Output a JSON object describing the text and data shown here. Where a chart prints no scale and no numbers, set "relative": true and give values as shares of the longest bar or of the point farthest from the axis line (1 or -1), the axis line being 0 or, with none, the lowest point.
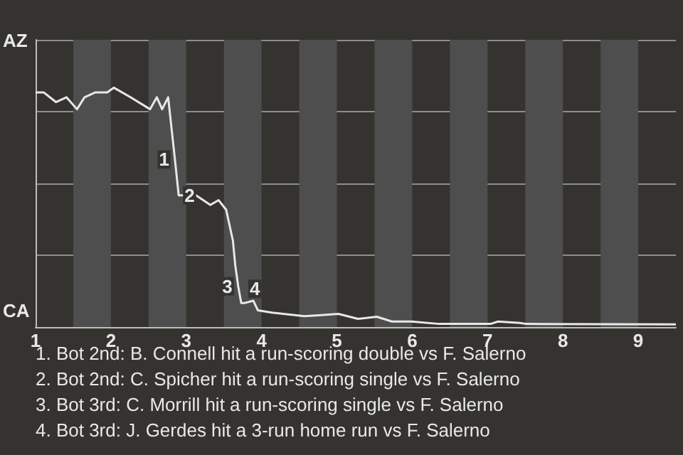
{
  "chart_data": {
    "type": "line",
    "relative": true,
    "x": [
      1,
      1.11,
      1.27,
      1.41,
      1.55,
      1.65,
      1.79,
      1.95,
      2.04,
      2.26,
      2.52,
      2.61,
      2.68,
      2.76,
      2.85,
      2.9,
      2.99,
      3.13,
      3.32,
      3.43,
      3.53,
      3.62,
      3.65,
      3.69,
      3.73,
      3.77,
      3.89,
      3.95,
      4.14,
      4.57,
      4.79,
      5.02,
      5.28,
      5.53,
      5.73,
      5.99,
      6.36,
      7.04,
      7.14,
      7.43,
      7.51,
      9.5
    ],
    "series": [
      {
        "color": "#e8e8e8",
        "values": [
          0.98,
          0.98,
          0.94,
          0.96,
          0.91,
          0.96,
          0.98,
          0.98,
          1,
          0.96,
          0.91,
          0.96,
          0.91,
          0.96,
          0.7,
          0.55,
          0.55,
          0.55,
          0.51,
          0.53,
          0.49,
          0.36,
          0.26,
          0.17,
          0.1,
          0.1,
          0.11,
          0.07,
          0.06,
          0.045,
          0.05,
          0.055,
          0.034,
          0.043,
          0.023,
          0.023,
          0.013,
          0.013,
          0.023,
          0.017,
          0.013,
          0.011
        ]
      }
    ],
    "xlim": [
      1,
      9.5
    ],
    "xticks": [
      1,
      2,
      3,
      4,
      5,
      6,
      7,
      8,
      9
    ],
    "grid": "y",
    "marker": "none",
    "bands": [
      {
        "axis": "x",
        "from": 1.5,
        "to": 2,
        "color": "#4e4e4e"
      },
      {
        "axis": "x",
        "from": 2.5,
        "to": 3,
        "color": "#4e4e4e"
      },
      {
        "axis": "x",
        "from": 3.5,
        "to": 4,
        "color": "#4e4e4e"
      },
      {
        "axis": "x",
        "from": 4.5,
        "to": 5,
        "color": "#4e4e4e"
      },
      {
        "axis": "x",
        "from": 5.5,
        "to": 6,
        "color": "#4e4e4e"
      },
      {
        "axis": "x",
        "from": 6.5,
        "to": 7,
        "color": "#4e4e4e"
      },
      {
        "axis": "x",
        "from": 7.5,
        "to": 8,
        "color": "#4e4e4e"
      },
      {
        "axis": "x",
        "from": 8.5,
        "to": 9,
        "color": "#4e4e4e"
      }
    ],
    "annotations": [
      {
        "text": "1",
        "x": 2.85,
        "y": 0.7
      },
      {
        "text": "2",
        "x": 2.9,
        "y": 0.55
      },
      {
        "text": "3",
        "x": 3.69,
        "y": 0.17
      },
      {
        "text": "4",
        "x": 3.73,
        "y": 0.1
      },
      "AZ",
      "CA",
      "1. Bot 2nd: B. Connell hit a run-scoring double vs F. Salerno",
      "2. Bot 2nd: C. Spicher hit a run-scoring single vs F. Salerno",
      "3. Bot 3rd: C. Morrill hit a run-scoring single vs F. Salerno",
      "4. Bot 3rd: J. Gerdes hit a 3-run home run vs F. Salerno"
    ]
  }
}
